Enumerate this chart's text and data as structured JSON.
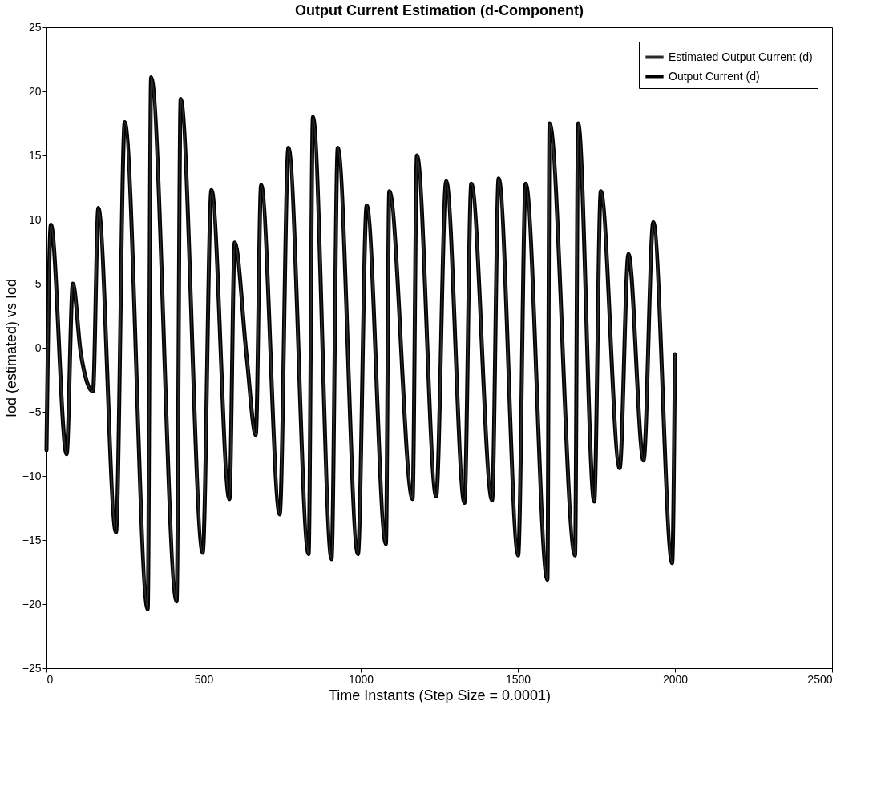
{
  "chart_data": {
    "type": "line",
    "title": "Output Current Estimation (d-Component)",
    "xlabel": "Time Instants (Step Size = 0.0001)",
    "ylabel": "Iod (estimated) vs Iod",
    "x": [
      0,
      14,
      64,
      84,
      109,
      148,
      165,
      221,
      249,
      322,
      333,
      414,
      427,
      497,
      525,
      582,
      599,
      637,
      666,
      683,
      742,
      770,
      834,
      848,
      907,
      927,
      991,
      1019,
      1080,
      1091,
      1165,
      1179,
      1240,
      1272,
      1330,
      1352,
      1418,
      1439,
      1501,
      1525,
      1594,
      1601,
      1682,
      1692,
      1743,
      1764,
      1824,
      1852,
      1900,
      1931,
      1991,
      2000
    ],
    "series": [
      {
        "name": "Estimated Output Current (d)",
        "color": "#2b2b2b",
        "values": [
          -8,
          9.6,
          -8.3,
          5,
          -0.4,
          -3.4,
          10.9,
          -14.4,
          17.6,
          -20.4,
          21.1,
          -19.8,
          19.4,
          -16,
          12.3,
          -11.8,
          8.2,
          -0.7,
          -6.8,
          12.7,
          -13,
          15.6,
          -16.1,
          18,
          -16.5,
          15.6,
          -16.1,
          11.1,
          -15.3,
          12.2,
          -11.8,
          15,
          -11.6,
          13,
          -12.1,
          12.8,
          -11.9,
          13.2,
          -16.2,
          12.8,
          -18.1,
          17.5,
          -16.2,
          17.5,
          -12,
          12.2,
          -9.4,
          7.3,
          -8.8,
          9.8,
          -16.8,
          -0.5
        ]
      },
      {
        "name": "Output Current (d)",
        "color": "#000000",
        "values": [
          -8,
          9.6,
          -8.3,
          5,
          -0.4,
          -3.4,
          10.9,
          -14.4,
          17.6,
          -20.4,
          21.1,
          -19.8,
          19.4,
          -16,
          12.3,
          -11.8,
          8.2,
          -0.7,
          -6.8,
          12.7,
          -13,
          15.6,
          -16.1,
          18,
          -16.5,
          15.6,
          -16.1,
          11.1,
          -15.3,
          12.2,
          -11.8,
          15,
          -11.6,
          13,
          -12.1,
          12.8,
          -11.9,
          13.2,
          -16.2,
          12.8,
          -18.1,
          17.5,
          -16.2,
          17.5,
          -12,
          12.2,
          -9.4,
          7.3,
          -8.8,
          9.8,
          -16.8,
          -0.5
        ]
      }
    ],
    "xlim": [
      0,
      2500
    ],
    "xticks": [
      0,
      500,
      1000,
      1500,
      2000,
      2500
    ],
    "ylim": [
      -25,
      25
    ],
    "yticks": [
      -25,
      -20,
      -15,
      -10,
      -5,
      0,
      5,
      10,
      15,
      20,
      25
    ],
    "grid": false,
    "legend": "top right",
    "line_style": "solid",
    "marker": "none"
  }
}
